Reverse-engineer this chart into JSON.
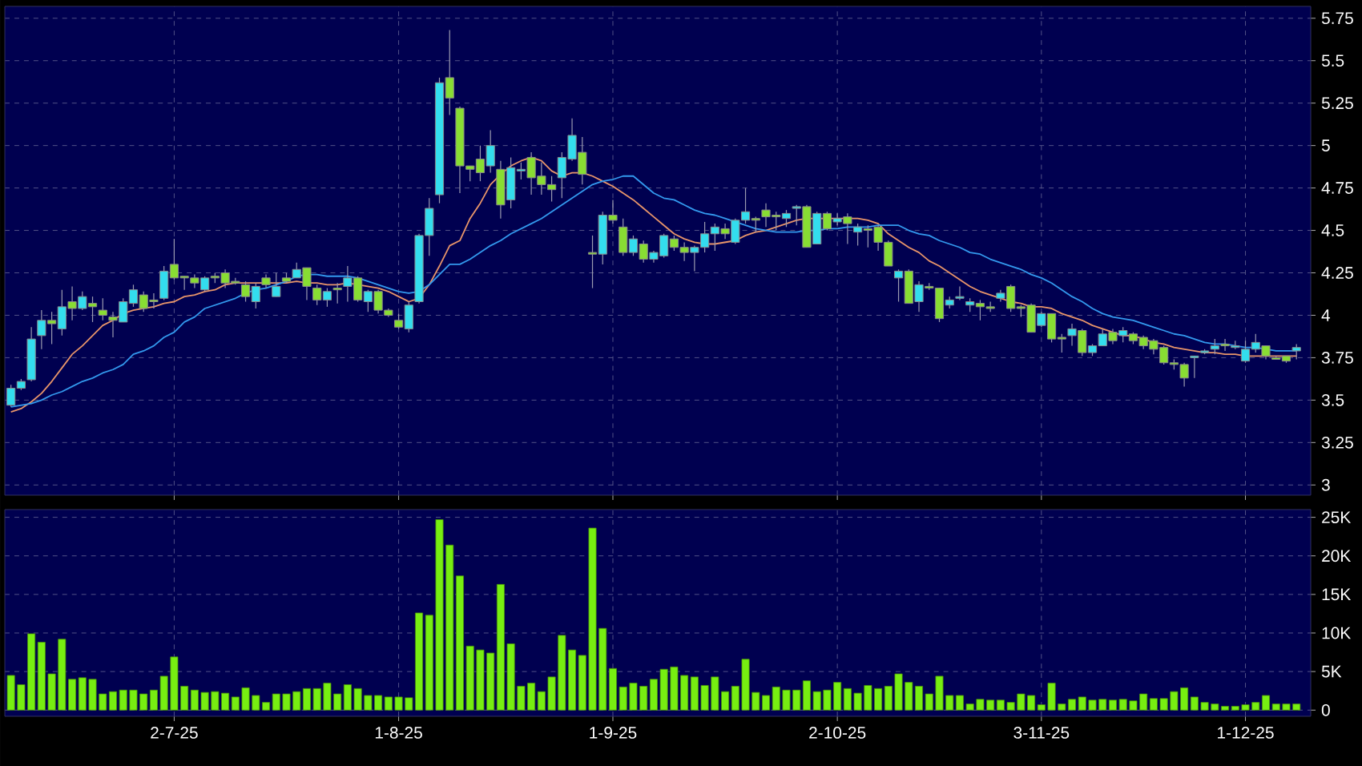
{
  "chart_data": [
    {
      "type": "candlestick",
      "categories": [
        null,
        null,
        null,
        null,
        null,
        null,
        null,
        null,
        null,
        null,
        null,
        null,
        null,
        null,
        null,
        null,
        null,
        null,
        null,
        null,
        null,
        null,
        null,
        null,
        null,
        null,
        null,
        null,
        null,
        null,
        null,
        null,
        null,
        null,
        null,
        null,
        null,
        null,
        null,
        null,
        null,
        null,
        null,
        null,
        null,
        null,
        null,
        null,
        null,
        null,
        null,
        null,
        null,
        null,
        null,
        null,
        null,
        null,
        null,
        null,
        null,
        null,
        null,
        null,
        null,
        null,
        null,
        null,
        null,
        null,
        null,
        null,
        null,
        null,
        null,
        null,
        null,
        null,
        null,
        null,
        null,
        null,
        null,
        null,
        null,
        null,
        null,
        null,
        null,
        null,
        null,
        null,
        null,
        null,
        null,
        null,
        null,
        null,
        null,
        null,
        null,
        null,
        null,
        null,
        null,
        null,
        null,
        null,
        null,
        null,
        null,
        null,
        null,
        null,
        null,
        null,
        null,
        null,
        null,
        null,
        null,
        null,
        null,
        null,
        null,
        null,
        null
      ],
      "ohlc": [
        [
          3.47,
          3.59,
          3.46,
          3.57
        ],
        [
          3.57,
          3.625,
          3.56,
          3.61
        ],
        [
          3.62,
          3.93,
          3.61,
          3.86
        ],
        [
          3.88,
          4.03,
          3.8,
          3.97
        ],
        [
          3.97,
          4.02,
          3.83,
          3.95
        ],
        [
          3.92,
          4.15,
          3.88,
          4.05
        ],
        [
          4.08,
          4.17,
          3.97,
          4.04
        ],
        [
          4.04,
          4.14,
          4.03,
          4.11
        ],
        [
          4.07,
          4.11,
          3.96,
          4.05
        ],
        [
          4.03,
          4.1,
          3.97,
          4.0
        ],
        [
          3.99,
          4.02,
          3.87,
          3.97
        ],
        [
          3.96,
          4.1,
          3.96,
          4.08
        ],
        [
          4.07,
          4.18,
          4.05,
          4.15
        ],
        [
          4.12,
          4.14,
          4.02,
          4.04
        ],
        [
          4.09,
          4.13,
          4.04,
          4.08
        ],
        [
          4.1,
          4.29,
          4.09,
          4.26
        ],
        [
          4.3,
          4.45,
          4.21,
          4.22
        ],
        [
          4.23,
          4.23,
          4.15,
          4.22
        ],
        [
          4.22,
          4.24,
          4.16,
          4.19
        ],
        [
          4.15,
          4.23,
          4.14,
          4.22
        ],
        [
          4.23,
          4.25,
          4.19,
          4.22
        ],
        [
          4.25,
          4.27,
          4.16,
          4.19
        ],
        [
          4.2,
          4.22,
          4.18,
          4.19
        ],
        [
          4.18,
          4.2,
          4.08,
          4.11
        ],
        [
          4.08,
          4.19,
          4.04,
          4.17
        ],
        [
          4.22,
          4.24,
          4.16,
          4.18
        ],
        [
          4.11,
          4.25,
          4.11,
          4.17
        ],
        [
          4.22,
          4.25,
          4.19,
          4.2
        ],
        [
          4.22,
          4.31,
          4.22,
          4.27
        ],
        [
          4.28,
          4.28,
          4.09,
          4.17
        ],
        [
          4.16,
          4.18,
          4.06,
          4.09
        ],
        [
          4.09,
          4.16,
          4.05,
          4.14
        ],
        [
          4.16,
          4.19,
          4.07,
          4.15
        ],
        [
          4.17,
          4.29,
          4.08,
          4.22
        ],
        [
          4.22,
          4.23,
          4.08,
          4.09
        ],
        [
          4.08,
          4.15,
          4.02,
          4.14
        ],
        [
          4.14,
          4.15,
          4.01,
          4.03
        ],
        [
          4.03,
          4.04,
          3.99,
          4.0
        ],
        [
          3.97,
          4.01,
          3.92,
          3.93
        ],
        [
          3.92,
          4.08,
          3.9,
          4.06
        ],
        [
          4.08,
          4.48,
          4.07,
          4.47
        ],
        [
          4.47,
          4.69,
          4.35,
          4.63
        ],
        [
          4.71,
          5.4,
          4.66,
          5.37
        ],
        [
          5.4,
          5.68,
          5.18,
          5.28
        ],
        [
          5.22,
          5.23,
          4.72,
          4.88
        ],
        [
          4.88,
          4.88,
          4.79,
          4.86
        ],
        [
          4.92,
          5.0,
          4.79,
          4.84
        ],
        [
          4.88,
          5.09,
          4.84,
          5.0
        ],
        [
          4.86,
          4.91,
          4.57,
          4.65
        ],
        [
          4.68,
          4.93,
          4.63,
          4.87
        ],
        [
          4.85,
          4.9,
          4.8,
          4.86
        ],
        [
          4.93,
          4.96,
          4.71,
          4.81
        ],
        [
          4.82,
          4.9,
          4.71,
          4.77
        ],
        [
          4.77,
          4.82,
          4.67,
          4.74
        ],
        [
          4.81,
          4.96,
          4.69,
          4.93
        ],
        [
          4.92,
          5.16,
          4.91,
          5.06
        ],
        [
          4.96,
          5.05,
          4.77,
          4.83
        ],
        [
          4.37,
          4.47,
          4.16,
          4.36
        ],
        [
          4.36,
          4.61,
          4.3,
          4.59
        ],
        [
          4.59,
          4.68,
          4.54,
          4.56
        ],
        [
          4.52,
          4.57,
          4.35,
          4.37
        ],
        [
          4.37,
          4.47,
          4.35,
          4.45
        ],
        [
          4.42,
          4.44,
          4.31,
          4.33
        ],
        [
          4.33,
          4.38,
          4.31,
          4.37
        ],
        [
          4.35,
          4.48,
          4.34,
          4.47
        ],
        [
          4.45,
          4.47,
          4.38,
          4.4
        ],
        [
          4.4,
          4.43,
          4.32,
          4.37
        ],
        [
          4.37,
          4.41,
          4.26,
          4.4
        ],
        [
          4.4,
          4.55,
          4.37,
          4.48
        ],
        [
          4.48,
          4.54,
          4.38,
          4.52
        ],
        [
          4.51,
          4.54,
          4.45,
          4.48
        ],
        [
          4.43,
          4.57,
          4.42,
          4.56
        ],
        [
          4.56,
          4.75,
          4.54,
          4.61
        ],
        [
          4.57,
          4.58,
          4.49,
          4.56
        ],
        [
          4.62,
          4.66,
          4.52,
          4.58
        ],
        [
          4.59,
          4.61,
          4.5,
          4.58
        ],
        [
          4.57,
          4.62,
          4.52,
          4.6
        ],
        [
          4.63,
          4.65,
          4.53,
          4.64
        ],
        [
          4.64,
          4.65,
          4.4,
          4.4
        ],
        [
          4.42,
          4.61,
          4.42,
          4.6
        ],
        [
          4.6,
          4.61,
          4.5,
          4.51
        ],
        [
          4.55,
          4.6,
          4.53,
          4.57
        ],
        [
          4.58,
          4.6,
          4.42,
          4.54
        ],
        [
          4.49,
          4.54,
          4.41,
          4.52
        ],
        [
          4.51,
          4.53,
          4.4,
          4.5
        ],
        [
          4.52,
          4.53,
          4.38,
          4.43
        ],
        [
          4.43,
          4.44,
          4.29,
          4.29
        ],
        [
          4.22,
          4.27,
          4.08,
          4.26
        ],
        [
          4.26,
          4.27,
          4.07,
          4.07
        ],
        [
          4.08,
          4.2,
          4.02,
          4.18
        ],
        [
          4.17,
          4.19,
          4.15,
          4.16
        ],
        [
          4.16,
          4.16,
          3.96,
          3.98
        ],
        [
          4.06,
          4.11,
          4.04,
          4.09
        ],
        [
          4.1,
          4.17,
          4.09,
          4.11
        ],
        [
          4.06,
          4.1,
          4.02,
          4.08
        ],
        [
          4.07,
          4.09,
          3.97,
          4.05
        ],
        [
          4.05,
          4.08,
          4.02,
          4.04
        ],
        [
          4.1,
          4.15,
          4.08,
          4.13
        ],
        [
          4.17,
          4.18,
          4.02,
          4.04
        ],
        [
          4.05,
          4.06,
          3.99,
          4.04
        ],
        [
          4.06,
          4.07,
          3.9,
          3.9
        ],
        [
          3.94,
          4.02,
          3.93,
          4.01
        ],
        [
          4.01,
          4.01,
          3.84,
          3.86
        ],
        [
          3.87,
          3.89,
          3.78,
          3.86
        ],
        [
          3.88,
          3.95,
          3.82,
          3.92
        ],
        [
          3.91,
          3.92,
          3.76,
          3.78
        ],
        [
          3.78,
          3.83,
          3.76,
          3.82
        ],
        [
          3.82,
          3.92,
          3.82,
          3.89
        ],
        [
          3.9,
          3.92,
          3.83,
          3.85
        ],
        [
          3.88,
          3.93,
          3.84,
          3.91
        ],
        [
          3.89,
          3.9,
          3.83,
          3.85
        ],
        [
          3.87,
          3.88,
          3.8,
          3.82
        ],
        [
          3.85,
          3.86,
          3.77,
          3.8
        ],
        [
          3.81,
          3.82,
          3.71,
          3.72
        ],
        [
          3.72,
          3.74,
          3.68,
          3.71
        ],
        [
          3.71,
          3.72,
          3.58,
          3.63
        ],
        [
          3.75,
          3.76,
          3.63,
          3.76
        ],
        [
          3.78,
          3.8,
          3.77,
          3.79
        ],
        [
          3.8,
          3.86,
          3.77,
          3.82
        ],
        [
          3.83,
          3.86,
          3.79,
          3.82
        ],
        [
          3.81,
          3.85,
          3.8,
          3.82
        ],
        [
          3.73,
          3.85,
          3.72,
          3.8
        ],
        [
          3.8,
          3.89,
          3.78,
          3.84
        ],
        [
          3.82,
          3.82,
          3.74,
          3.76
        ],
        [
          3.75,
          3.76,
          3.74,
          3.74
        ],
        [
          3.76,
          3.76,
          3.72,
          3.73
        ],
        [
          3.79,
          3.83,
          3.74,
          3.81
        ]
      ],
      "colors": [
        "#33ddee",
        "#33ddee",
        "#33ddee",
        "#33ddee",
        "#88dd33",
        "#33ddee",
        "#88dd33",
        "#33ddee",
        "#88dd33",
        "#88dd33",
        "#88dd33",
        "#33ddee",
        "#33ddee",
        "#88dd33",
        "#88dd33",
        "#33ddee",
        "#88dd33",
        "#88dd33",
        "#88dd33",
        "#33ddee",
        "#88dd33",
        "#88dd33",
        "#88dd33",
        "#88dd33",
        "#33ddee",
        "#88dd33",
        "#33ddee",
        "#88dd33",
        "#33ddee",
        "#88dd33",
        "#88dd33",
        "#33ddee",
        "#88dd33",
        "#33ddee",
        "#88dd33",
        "#33ddee",
        "#88dd33",
        "#88dd33",
        "#88dd33",
        "#33ddee",
        "#33ddee",
        "#33ddee",
        "#33ddee",
        "#88dd33",
        "#88dd33",
        "#88dd33",
        "#88dd33",
        "#33ddee",
        "#88dd33",
        "#33ddee",
        "#33ddee",
        "#88dd33",
        "#88dd33",
        "#88dd33",
        "#33ddee",
        "#33ddee",
        "#88dd33",
        "#88dd33",
        "#33ddee",
        "#88dd33",
        "#88dd33",
        "#33ddee",
        "#88dd33",
        "#33ddee",
        "#33ddee",
        "#88dd33",
        "#88dd33",
        "#33ddee",
        "#33ddee",
        "#33ddee",
        "#88dd33",
        "#33ddee",
        "#33ddee",
        "#88dd33",
        "#88dd33",
        "#88dd33",
        "#33ddee",
        "#33ddee",
        "#88dd33",
        "#33ddee",
        "#88dd33",
        "#33ddee",
        "#88dd33",
        "#33ddee",
        "#88dd33",
        "#88dd33",
        "#88dd33",
        "#33ddee",
        "#88dd33",
        "#33ddee",
        "#88dd33",
        "#88dd33",
        "#33ddee",
        "#33ddee",
        "#33ddee",
        "#88dd33",
        "#88dd33",
        "#33ddee",
        "#88dd33",
        "#88dd33",
        "#88dd33",
        "#33ddee",
        "#88dd33",
        "#88dd33",
        "#33ddee",
        "#88dd33",
        "#33ddee",
        "#33ddee",
        "#88dd33",
        "#33ddee",
        "#88dd33",
        "#88dd33",
        "#88dd33",
        "#88dd33",
        "#88dd33",
        "#88dd33",
        "#33ddee",
        "#33ddee",
        "#33ddee",
        "#88dd33",
        "#33ddee",
        "#33ddee",
        "#33ddee",
        "#88dd33",
        "#88dd33",
        "#88dd33",
        "#33ddee"
      ],
      "series": [
        {
          "type": "line",
          "color": "#e8956a",
          "values": [
            3.43,
            3.45,
            3.49,
            3.54,
            3.61,
            3.69,
            3.77,
            3.82,
            3.88,
            3.94,
            3.97,
            4.01,
            4.03,
            4.04,
            4.05,
            4.07,
            4.08,
            4.11,
            4.12,
            4.14,
            4.15,
            4.18,
            4.19,
            4.19,
            4.19,
            4.19,
            4.19,
            4.19,
            4.2,
            4.19,
            4.19,
            4.18,
            4.18,
            4.19,
            4.18,
            4.17,
            4.16,
            4.14,
            4.11,
            4.08,
            4.1,
            4.18,
            4.29,
            4.41,
            4.44,
            4.57,
            4.66,
            4.77,
            4.83,
            4.88,
            4.91,
            4.93,
            4.91,
            4.85,
            4.82,
            4.84,
            4.84,
            4.82,
            4.79,
            4.76,
            4.72,
            4.68,
            4.63,
            4.58,
            4.53,
            4.48,
            4.45,
            4.43,
            4.42,
            4.42,
            4.43,
            4.44,
            4.47,
            4.49,
            4.5,
            4.52,
            4.54,
            4.56,
            4.57,
            4.57,
            4.57,
            4.57,
            4.57,
            4.57,
            4.56,
            4.54,
            4.48,
            4.44,
            4.4,
            4.37,
            4.32,
            4.29,
            4.25,
            4.21,
            4.17,
            4.14,
            4.12,
            4.1,
            4.08,
            4.07,
            4.05,
            4.05,
            4.04,
            4.01,
            3.99,
            3.97,
            3.94,
            3.92,
            3.9,
            3.88,
            3.88,
            3.86,
            3.84,
            3.83,
            3.81,
            3.8,
            3.79,
            3.78,
            3.78,
            3.77,
            3.77,
            3.76,
            3.76,
            3.76,
            3.76,
            3.76,
            3.76
          ]
        },
        {
          "type": "line",
          "color": "#3399ee",
          "values": [
            3.46,
            3.47,
            3.48,
            3.5,
            3.53,
            3.55,
            3.58,
            3.61,
            3.63,
            3.66,
            3.68,
            3.71,
            3.77,
            3.79,
            3.82,
            3.87,
            3.9,
            3.96,
            3.99,
            4.04,
            4.06,
            4.08,
            4.1,
            4.13,
            4.15,
            4.16,
            4.18,
            4.2,
            4.23,
            4.24,
            4.24,
            4.23,
            4.23,
            4.23,
            4.22,
            4.2,
            4.18,
            4.16,
            4.14,
            4.13,
            4.14,
            4.18,
            4.24,
            4.3,
            4.3,
            4.33,
            4.37,
            4.41,
            4.44,
            4.48,
            4.51,
            4.54,
            4.57,
            4.61,
            4.65,
            4.69,
            4.73,
            4.77,
            4.79,
            4.8,
            4.82,
            4.82,
            4.77,
            4.72,
            4.69,
            4.68,
            4.65,
            4.62,
            4.6,
            4.59,
            4.57,
            4.55,
            4.53,
            4.51,
            4.5,
            4.49,
            4.49,
            4.49,
            4.5,
            4.5,
            4.51,
            4.51,
            4.52,
            4.52,
            4.52,
            4.53,
            4.53,
            4.53,
            4.5,
            4.48,
            4.47,
            4.44,
            4.42,
            4.4,
            4.37,
            4.36,
            4.33,
            4.31,
            4.29,
            4.27,
            4.24,
            4.22,
            4.19,
            4.15,
            4.11,
            4.08,
            4.04,
            4.01,
            3.99,
            3.98,
            3.97,
            3.95,
            3.93,
            3.91,
            3.89,
            3.88,
            3.86,
            3.84,
            3.83,
            3.83,
            3.82,
            3.81,
            3.81,
            3.8,
            3.79,
            3.79,
            3.79
          ]
        }
      ],
      "ylim": [
        2.94,
        5.82
      ],
      "yticks": [
        3,
        3.25,
        3.5,
        3.75,
        4,
        4.25,
        4.5,
        4.75,
        5,
        5.25,
        5.5,
        5.75
      ],
      "grid": true,
      "tick_labels": "y"
    },
    {
      "type": "bar",
      "categories": [
        null,
        null,
        null,
        null,
        null,
        null,
        null,
        null,
        null,
        null,
        null,
        null,
        null,
        null,
        null,
        null,
        "2-7-25",
        null,
        null,
        null,
        null,
        null,
        null,
        null,
        null,
        null,
        null,
        null,
        null,
        null,
        null,
        null,
        null,
        null,
        null,
        null,
        null,
        null,
        "1-8-25",
        null,
        null,
        null,
        null,
        null,
        null,
        null,
        null,
        null,
        null,
        null,
        null,
        null,
        null,
        null,
        null,
        null,
        null,
        null,
        null,
        "1-9-25",
        null,
        null,
        null,
        null,
        null,
        null,
        null,
        null,
        null,
        null,
        null,
        null,
        null,
        null,
        null,
        null,
        null,
        null,
        null,
        null,
        null,
        "2-10-25",
        null,
        null,
        null,
        null,
        null,
        null,
        null,
        null,
        null,
        null,
        null,
        null,
        null,
        null,
        null,
        null,
        null,
        null,
        null,
        "3-11-25",
        null,
        null,
        null,
        null,
        null,
        null,
        null,
        null,
        null,
        null,
        null,
        null,
        null,
        null,
        null,
        null,
        null,
        null,
        null,
        "1-12-25",
        null,
        null,
        null,
        null,
        null
      ],
      "values": [
        4500,
        3300,
        9900,
        8800,
        4700,
        9200,
        4000,
        4200,
        4000,
        2100,
        2400,
        2600,
        2600,
        2100,
        2600,
        4400,
        6900,
        3100,
        2600,
        2300,
        2400,
        2200,
        1700,
        2900,
        1900,
        1000,
        2100,
        2100,
        2400,
        2800,
        2800,
        3500,
        2100,
        3300,
        2800,
        1900,
        1900,
        1700,
        1700,
        1600,
        12600,
        12300,
        24700,
        21400,
        17400,
        8300,
        7800,
        7400,
        16300,
        8600,
        3100,
        3500,
        2400,
        4300,
        9700,
        7800,
        7100,
        23600,
        10600,
        5400,
        3000,
        3500,
        3100,
        4000,
        5300,
        5600,
        4500,
        4300,
        3200,
        4300,
        2400,
        3100,
        6600,
        2300,
        1900,
        3000,
        2600,
        2600,
        3800,
        2400,
        2600,
        3600,
        2800,
        2200,
        3200,
        2800,
        3100,
        4700,
        3600,
        3100,
        2100,
        4400,
        1900,
        1900,
        800,
        1400,
        1300,
        1300,
        1000,
        2100,
        1900,
        700,
        3500,
        800,
        1400,
        1700,
        1300,
        1400,
        1300,
        1400,
        1200,
        2100,
        1500,
        1500,
        2400,
        2900,
        1700,
        1000,
        800,
        500,
        500,
        700,
        1000,
        1900,
        800,
        800,
        800
      ],
      "color": "#77ee11",
      "ylim": [
        -800,
        26000
      ],
      "yticks": [
        0,
        {
          "value": 5000,
          "label": "5K"
        },
        {
          "value": 10000,
          "label": "10K"
        },
        {
          "value": 15000,
          "label": "15K"
        },
        {
          "value": 20000,
          "label": "20K"
        },
        {
          "value": 25000,
          "label": "25K"
        }
      ],
      "grid": true
    }
  ]
}
